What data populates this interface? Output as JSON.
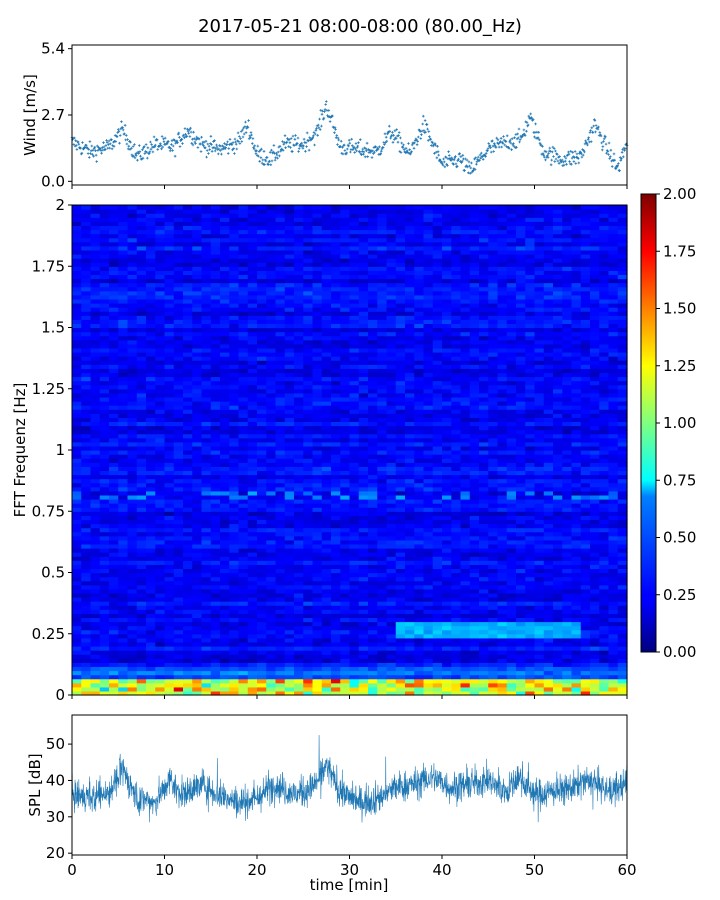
{
  "chart_data": [
    {
      "type": "scatter",
      "title": "2017-05-21 08:00-08:00 (80.00_Hz)",
      "ylabel": "Wind [m/s]",
      "xlabel": "",
      "xlim": [
        0,
        60
      ],
      "ylim": [
        -0.15,
        5.55
      ],
      "yticks": [
        "0.0",
        "2.7",
        "5.4"
      ],
      "ytick_values": [
        0.0,
        2.7,
        5.4
      ],
      "color": "#1f77b4",
      "marker": "+",
      "profile": {
        "t": [
          0,
          2,
          4,
          5.5,
          7,
          9,
          11,
          12.5,
          14,
          16,
          18,
          19,
          20,
          21.5,
          23,
          25,
          26.5,
          27.5,
          29,
          31,
          33,
          34.5,
          36.5,
          38,
          39,
          40,
          42,
          43,
          45,
          47,
          48.5,
          49.5,
          51,
          53,
          55,
          56.5,
          58,
          59,
          60
        ],
        "wind": [
          1.6,
          1.2,
          1.4,
          2.1,
          1.0,
          1.5,
          1.4,
          2.1,
          1.5,
          1.3,
          1.6,
          2.3,
          1.1,
          0.9,
          1.5,
          1.5,
          2.0,
          3.1,
          1.4,
          1.3,
          1.2,
          2.0,
          1.1,
          2.3,
          1.5,
          0.7,
          0.9,
          0.4,
          1.3,
          1.6,
          1.7,
          2.6,
          1.2,
          0.9,
          1.0,
          2.3,
          1.2,
          0.5,
          1.6
        ]
      }
    },
    {
      "type": "heatmap",
      "ylabel": "FFT Frequenz [Hz]",
      "xlim": [
        0,
        60
      ],
      "ylim": [
        0,
        2
      ],
      "yticks": [
        "0",
        "0.25",
        "0.5",
        "0.75",
        "1",
        "1.25",
        "1.5",
        "1.75",
        "2"
      ],
      "ytick_values": [
        0,
        0.25,
        0.5,
        0.75,
        1,
        1.25,
        1.5,
        1.75,
        2
      ],
      "colormap": "jet",
      "colorbar": {
        "range": [
          0,
          2
        ],
        "ticks": [
          "0.00",
          "0.25",
          "0.50",
          "0.75",
          "1.00",
          "1.25",
          "1.50",
          "1.75",
          "2.00"
        ],
        "tick_values": [
          0,
          0.25,
          0.5,
          0.75,
          1,
          1.25,
          1.5,
          1.75,
          2
        ]
      },
      "features": {
        "background_level": 0.25,
        "low_freq_band_hz": [
          0,
          0.06
        ],
        "low_freq_level": 1.2,
        "mid_band": {
          "t_range": [
            35,
            55
          ],
          "freq_hz": 0.27,
          "level": 0.6
        }
      }
    },
    {
      "type": "line",
      "xlabel": "time [min]",
      "ylabel": "SPL [dB]",
      "xlim": [
        0,
        60
      ],
      "ylim": [
        19.5,
        58
      ],
      "yticks": [
        "20",
        "30",
        "40",
        "50"
      ],
      "ytick_values": [
        20,
        30,
        40,
        50
      ],
      "xticks": [
        "0",
        "10",
        "20",
        "30",
        "40",
        "50",
        "60"
      ],
      "xtick_values": [
        0,
        10,
        20,
        30,
        40,
        50,
        60
      ],
      "color": "#1f77b4",
      "profile": {
        "t": [
          0,
          2,
          4,
          5.5,
          7,
          9,
          10.5,
          12,
          14,
          16,
          18,
          20,
          22,
          24,
          26,
          27.5,
          29,
          31,
          33,
          35,
          37,
          39,
          41,
          43,
          45,
          47,
          48.5,
          50,
          52,
          54,
          56,
          58,
          60
        ],
        "spl": [
          36,
          35,
          37,
          43,
          35,
          34,
          40,
          36,
          39,
          36,
          34,
          35,
          39,
          36,
          38,
          44,
          37,
          34,
          35,
          38,
          39,
          41,
          38,
          39,
          40,
          37,
          41,
          36,
          37,
          38,
          40,
          37,
          39
        ]
      }
    }
  ]
}
